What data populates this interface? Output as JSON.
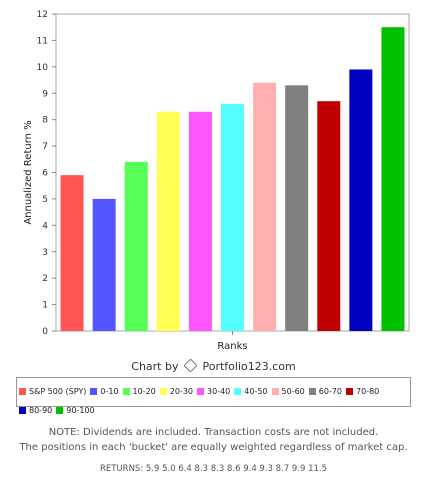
{
  "chart_data": {
    "type": "bar",
    "categories": [
      "S&P 500 (SPY)",
      "0-10",
      "10-20",
      "20-30",
      "30-40",
      "40-50",
      "50-60",
      "60-70",
      "70-80",
      "80-90",
      "90-100"
    ],
    "values": [
      5.9,
      5.0,
      6.4,
      8.3,
      8.3,
      8.6,
      9.4,
      9.3,
      8.7,
      9.9,
      11.5
    ],
    "colors": [
      "#ff5555",
      "#5555ff",
      "#55ff55",
      "#ffff55",
      "#ff55ff",
      "#55ffff",
      "#ffafaf",
      "#808080",
      "#c00000",
      "#0000c0",
      "#00c000"
    ],
    "ylabel": "Annualized Return %",
    "xlabel": "Ranks",
    "ylim": [
      0,
      12
    ],
    "yticks": [
      0,
      1,
      2,
      3,
      4,
      5,
      6,
      7,
      8,
      9,
      10,
      11,
      12
    ],
    "grid": false,
    "legend_position": "bottom"
  },
  "credit": {
    "prefix": "Chart by",
    "brand": "Portfolio123.com"
  },
  "note": {
    "line1": "NOTE: Dividends are included. Transaction costs are not included.",
    "line2": "The positions in each 'bucket' are equally weighted regardless of market cap."
  },
  "returns_text": "RETURNS: 5.9 5.0 6.4 8.3 8.3 8.6 9.4 9.3 8.7 9.9 11.5"
}
